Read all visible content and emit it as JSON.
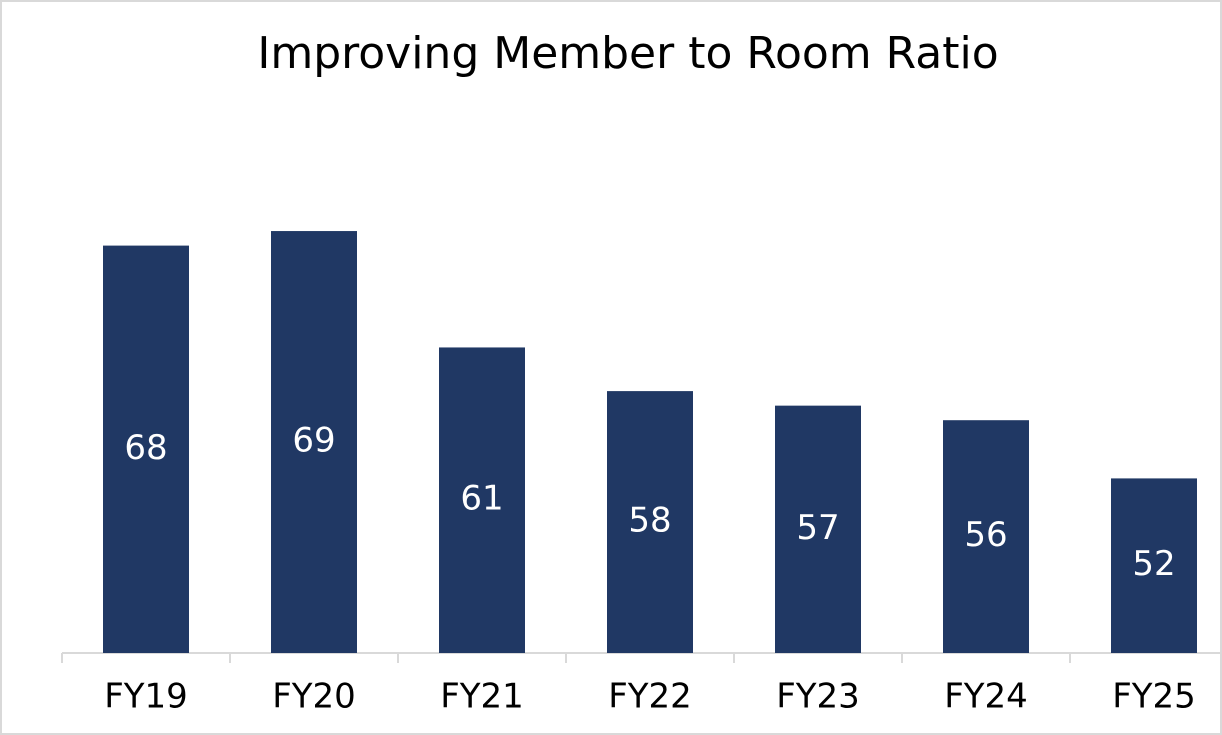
{
  "chart_data": {
    "type": "bar",
    "title": "Improving Member to Room Ratio",
    "categories": [
      "FY19",
      "FY20",
      "FY21",
      "FY22",
      "FY23",
      "FY24",
      "FY25"
    ],
    "values": [
      68,
      69,
      61,
      58,
      57,
      56,
      52
    ],
    "color": "#203864",
    "ylim": [
      40,
      80
    ]
  }
}
